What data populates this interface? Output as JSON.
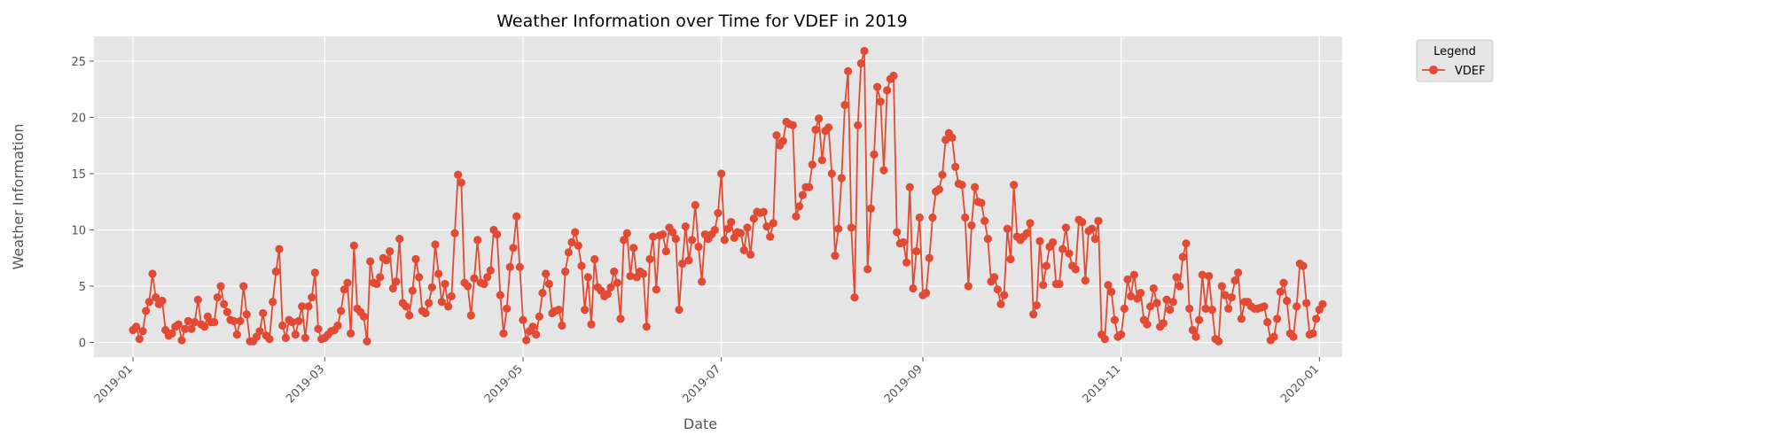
{
  "chart_data": {
    "type": "line",
    "title": "Weather Information over Time for VDEF in 2019",
    "xlabel": "Date",
    "ylabel": "Weather Information",
    "xlim": [
      "2018-12-20",
      "2020-01-08"
    ],
    "ylim": [
      -1.3,
      27.2
    ],
    "xticks": [
      "2019-01",
      "2019-03",
      "2019-05",
      "2019-07",
      "2019-09",
      "2019-11",
      "2020-01"
    ],
    "xtick_dates": [
      "2019-01-01",
      "2019-03-01",
      "2019-05-01",
      "2019-07-01",
      "2019-09-01",
      "2019-11-01",
      "2020-01-01"
    ],
    "yticks": [
      0,
      5,
      10,
      15,
      20,
      25
    ],
    "grid": true,
    "legend_title": "Legend",
    "legend_position": "outside-top-right",
    "series": [
      {
        "name": "VDEF",
        "color": "#E24A33",
        "marker": "circle",
        "start_date": "2019-01-01",
        "values": [
          1.1,
          1.4,
          0.3,
          1.0,
          2.8,
          3.6,
          6.1,
          4.0,
          3.4,
          3.7,
          1.1,
          0.6,
          0.8,
          1.4,
          1.6,
          0.2,
          1.2,
          1.9,
          1.2,
          1.8,
          3.8,
          1.6,
          1.4,
          2.3,
          1.8,
          1.8,
          4.0,
          5.0,
          3.4,
          2.7,
          2.0,
          1.9,
          0.7,
          1.9,
          5.0,
          2.5,
          0.1,
          0.1,
          0.5,
          1.0,
          2.6,
          0.6,
          0.3,
          3.6,
          6.3,
          8.3,
          1.5,
          0.4,
          2.0,
          1.8,
          0.7,
          1.9,
          3.2,
          0.4,
          3.2,
          4.0,
          6.2,
          1.2,
          0.3,
          0.4,
          0.7,
          1.0,
          1.1,
          1.5,
          2.8,
          4.7,
          5.3,
          0.8,
          8.6,
          3.0,
          2.7,
          2.3,
          0.1,
          7.2,
          5.3,
          5.2,
          5.8,
          7.5,
          7.3,
          8.1,
          4.8,
          5.4,
          9.2,
          3.5,
          3.2,
          2.4,
          4.6,
          7.4,
          5.8,
          2.8,
          2.6,
          3.5,
          4.9,
          8.7,
          6.1,
          3.6,
          5.2,
          3.2,
          4.1,
          9.7,
          14.9,
          14.2,
          5.3,
          5.0,
          2.4,
          5.7,
          9.1,
          5.3,
          5.2,
          5.8,
          6.4,
          10.0,
          9.6,
          4.2,
          0.8,
          3.0,
          6.7,
          8.4,
          11.2,
          6.7,
          2.0,
          0.2,
          1.0,
          1.4,
          0.7,
          2.3,
          4.4,
          6.1,
          5.2,
          2.6,
          2.8,
          2.9,
          1.5,
          6.3,
          8.0,
          8.9,
          9.8,
          8.6,
          6.8,
          2.9,
          5.8,
          1.6,
          7.4,
          4.9,
          4.6,
          4.1,
          4.3,
          4.9,
          6.3,
          5.3,
          2.1,
          9.1,
          9.7,
          5.9,
          8.4,
          5.8,
          6.3,
          6.1,
          1.4,
          7.4,
          9.4,
          4.7,
          9.5,
          9.6,
          8.1,
          10.2,
          9.8,
          9.2,
          2.9,
          7.0,
          10.3,
          7.3,
          9.1,
          12.2,
          8.5,
          5.4,
          9.6,
          9.2,
          9.6,
          10.0,
          11.5,
          15.0,
          9.1,
          10.1,
          10.7,
          9.3,
          9.8,
          9.7,
          8.2,
          10.2,
          7.8,
          11.0,
          11.6,
          11.5,
          11.6,
          10.3,
          9.4,
          10.6,
          18.4,
          17.5,
          17.9,
          19.6,
          19.4,
          19.3,
          11.2,
          12.1,
          13.1,
          13.8,
          13.8,
          15.8,
          18.9,
          19.9,
          16.2,
          18.8,
          19.1,
          15.0,
          7.7,
          10.1,
          14.6,
          21.1,
          24.1,
          10.2,
          4.0,
          19.3,
          24.8,
          25.9,
          6.5,
          11.9,
          16.7,
          22.7,
          21.4,
          15.3,
          22.4,
          23.4,
          23.7,
          9.8,
          8.8,
          8.9,
          7.1,
          13.8,
          4.8,
          8.1,
          11.1,
          4.2,
          4.4,
          7.5,
          11.1,
          13.4,
          13.6,
          14.9,
          18.0,
          18.6,
          18.2,
          15.6,
          14.1,
          14.0,
          11.1,
          5.0,
          10.4,
          13.8,
          12.5,
          12.4,
          10.8,
          9.2,
          5.4,
          5.8,
          4.7,
          3.4,
          4.2,
          10.1,
          7.4,
          14.0,
          9.4,
          9.1,
          9.4,
          9.7,
          10.6,
          2.5,
          3.3,
          9.0,
          5.1,
          6.8,
          8.5,
          8.9,
          5.2,
          5.2,
          8.3,
          10.2,
          7.9,
          6.8,
          6.5,
          10.9,
          10.7,
          5.5,
          9.9,
          10.1,
          9.2,
          10.8,
          0.7,
          0.3,
          5.1,
          4.5,
          2.0,
          0.5,
          0.7,
          3.0,
          5.6,
          4.1,
          6.0,
          3.9,
          4.4,
          2.0,
          1.6,
          3.2,
          4.8,
          3.5,
          1.4,
          1.7,
          3.8,
          2.9,
          3.6,
          5.8,
          5.0,
          7.6,
          8.8,
          3.0,
          1.1,
          0.5,
          2.0,
          6.0,
          3.0,
          5.9,
          2.9,
          0.3,
          0.1,
          5.0,
          4.2,
          3.0,
          4.0,
          5.5,
          6.2,
          2.1,
          3.6,
          3.6,
          3.2,
          3.0,
          3.0,
          3.1,
          3.2,
          1.8,
          0.2,
          0.5,
          2.1,
          4.5,
          5.3,
          3.7,
          0.8,
          0.5,
          3.2,
          7.0,
          6.8,
          3.5,
          0.7,
          0.8,
          2.1,
          2.9,
          3.4
        ]
      }
    ]
  },
  "legend": {
    "title": "Legend",
    "entries": [
      "VDEF"
    ]
  }
}
